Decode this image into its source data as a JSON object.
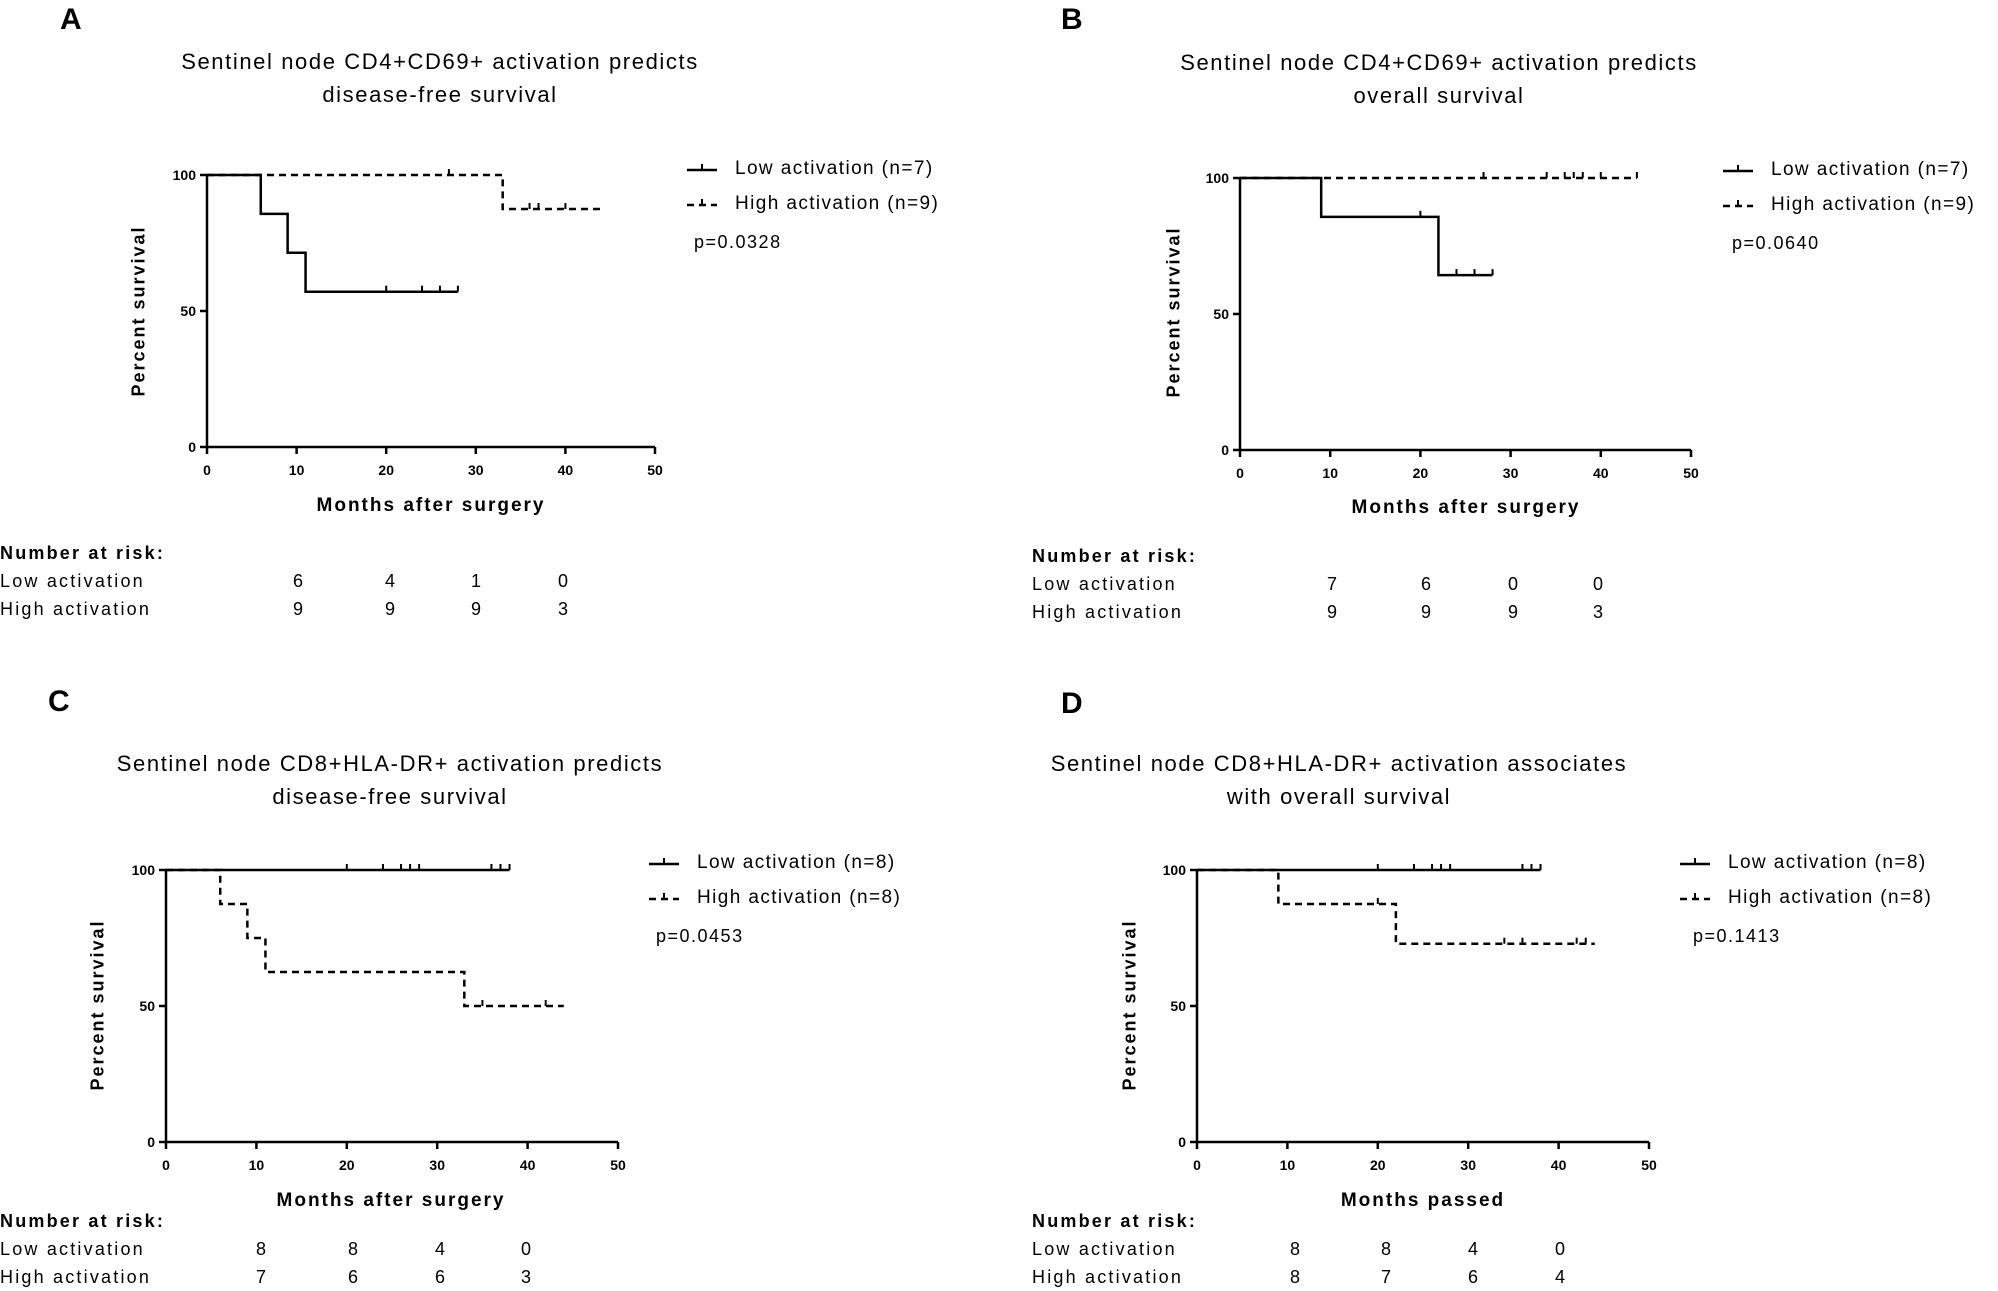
{
  "chart_data": [
    {
      "panel": "A",
      "type": "line",
      "title": [
        "Sentinel node CD4+CD69+ activation predicts",
        "disease-free survival"
      ],
      "xlabel": "Months after surgery",
      "ylabel": "Percent survival",
      "xlim": [
        0,
        50
      ],
      "ylim": [
        0,
        100
      ],
      "xticks": [
        0,
        10,
        20,
        30,
        40,
        50
      ],
      "yticks": [
        0,
        50,
        100
      ],
      "legend": "top-right",
      "p_value": "p=0.0328",
      "series": [
        {
          "name": "Low activation (n=7)",
          "style": "solid",
          "x": [
            0,
            6,
            6,
            9,
            9,
            11,
            11,
            28
          ],
          "y": [
            100,
            100,
            85.7,
            85.7,
            71.4,
            71.4,
            57.1,
            57.1
          ],
          "censored": [
            [
              20,
              57.1
            ],
            [
              24,
              57.1
            ],
            [
              26,
              57.1
            ],
            [
              28,
              57.1
            ]
          ]
        },
        {
          "name": "High activation (n=9)",
          "style": "dashed",
          "x": [
            0,
            33,
            33,
            44
          ],
          "y": [
            100,
            100,
            87.5,
            87.5
          ],
          "censored": [
            [
              27,
              100
            ],
            [
              36,
              87.5
            ],
            [
              37,
              87.5
            ],
            [
              40,
              87.5
            ]
          ]
        }
      ],
      "risk_table": {
        "header": "Number at risk:",
        "times": [
          10,
          20,
          30,
          40
        ],
        "rows": [
          {
            "label": "Low activation",
            "values": [
              "6",
              "4",
              "1",
              "0"
            ]
          },
          {
            "label": "High activation",
            "values": [
              "9",
              "9",
              "9",
              "3"
            ]
          }
        ]
      }
    },
    {
      "panel": "B",
      "type": "line",
      "title": [
        "Sentinel node CD4+CD69+ activation predicts",
        "overall survival"
      ],
      "xlabel": "Months after surgery",
      "ylabel": "Percent survival",
      "xlim": [
        0,
        50
      ],
      "ylim": [
        0,
        100
      ],
      "xticks": [
        0,
        10,
        20,
        30,
        40,
        50
      ],
      "yticks": [
        0,
        50,
        100
      ],
      "legend": "top-right",
      "p_value": "p=0.0640",
      "series": [
        {
          "name": "Low activation (n=7)",
          "style": "solid",
          "x": [
            0,
            9,
            9,
            22,
            22,
            28
          ],
          "y": [
            100,
            100,
            85.7,
            85.7,
            64.3,
            64.3
          ],
          "censored": [
            [
              20,
              85.7
            ],
            [
              24,
              64.3
            ],
            [
              26,
              64.3
            ],
            [
              28,
              64.3
            ]
          ]
        },
        {
          "name": "High activation (n=9)",
          "style": "dashed",
          "x": [
            0,
            44
          ],
          "y": [
            100,
            100
          ],
          "censored": [
            [
              27,
              100
            ],
            [
              34,
              100
            ],
            [
              36,
              100
            ],
            [
              37,
              100
            ],
            [
              38,
              100
            ],
            [
              40,
              100
            ],
            [
              44,
              100
            ]
          ]
        }
      ],
      "risk_table": {
        "header": "Number at risk:",
        "times": [
          10,
          20,
          30,
          40
        ],
        "rows": [
          {
            "label": "Low activation",
            "values": [
              "7",
              "6",
              "0",
              "0"
            ]
          },
          {
            "label": "High activation",
            "values": [
              "9",
              "9",
              "9",
              "3"
            ]
          }
        ]
      }
    },
    {
      "panel": "C",
      "type": "line",
      "title": [
        "Sentinel node CD8+HLA-DR+ activation predicts",
        "disease-free survival"
      ],
      "xlabel": "Months after surgery",
      "ylabel": "Percent survival",
      "xlim": [
        0,
        50
      ],
      "ylim": [
        0,
        100
      ],
      "xticks": [
        0,
        10,
        20,
        30,
        40,
        50
      ],
      "yticks": [
        0,
        50,
        100
      ],
      "legend": "top-right",
      "p_value": "p=0.0453",
      "series": [
        {
          "name": "Low activation (n=8)",
          "style": "solid",
          "x": [
            0,
            38
          ],
          "y": [
            100,
            100
          ],
          "censored": [
            [
              20,
              100
            ],
            [
              24,
              100
            ],
            [
              26,
              100
            ],
            [
              27,
              100
            ],
            [
              28,
              100
            ],
            [
              36,
              100
            ],
            [
              37,
              100
            ],
            [
              38,
              100
            ]
          ]
        },
        {
          "name": "High activation (n=8)",
          "style": "dashed",
          "x": [
            0,
            6,
            6,
            9,
            9,
            11,
            11,
            33,
            33,
            44
          ],
          "y": [
            100,
            100,
            87.5,
            87.5,
            75,
            75,
            62.5,
            62.5,
            50,
            50
          ],
          "censored": [
            [
              35,
              50
            ],
            [
              42,
              50
            ]
          ]
        }
      ],
      "risk_table": {
        "header": "Number at risk:",
        "times": [
          10,
          20,
          30,
          40
        ],
        "rows": [
          {
            "label": "Low activation",
            "values": [
              "8",
              "8",
              "4",
              "0"
            ]
          },
          {
            "label": "High activation",
            "values": [
              "7",
              "6",
              "6",
              "3"
            ]
          }
        ]
      }
    },
    {
      "panel": "D",
      "type": "line",
      "title": [
        "Sentinel node CD8+HLA-DR+ activation associates",
        "with overall survival"
      ],
      "xlabel": "Months passed",
      "ylabel": "Percent survival",
      "xlim": [
        0,
        50
      ],
      "ylim": [
        0,
        100
      ],
      "xticks": [
        0,
        10,
        20,
        30,
        40,
        50
      ],
      "yticks": [
        0,
        50,
        100
      ],
      "legend": "top-right",
      "p_value": "p=0.1413",
      "series": [
        {
          "name": "Low activation (n=8)",
          "style": "solid",
          "x": [
            0,
            38
          ],
          "y": [
            100,
            100
          ],
          "censored": [
            [
              20,
              100
            ],
            [
              24,
              100
            ],
            [
              26,
              100
            ],
            [
              27,
              100
            ],
            [
              28,
              100
            ],
            [
              36,
              100
            ],
            [
              37,
              100
            ],
            [
              38,
              100
            ]
          ]
        },
        {
          "name": "High activation (n=8)",
          "style": "dashed",
          "x": [
            0,
            9,
            9,
            22,
            22,
            44
          ],
          "y": [
            100,
            100,
            87.5,
            87.5,
            72.9,
            72.9
          ],
          "censored": [
            [
              20,
              87.5
            ],
            [
              34,
              72.9
            ],
            [
              36,
              72.9
            ],
            [
              42,
              72.9
            ],
            [
              43,
              72.9
            ]
          ]
        }
      ],
      "risk_table": {
        "header": "Number at risk:",
        "times": [
          10,
          20,
          30,
          40
        ],
        "rows": [
          {
            "label": "Low activation",
            "values": [
              "8",
              "8",
              "4",
              "0"
            ]
          },
          {
            "label": "High activation",
            "values": [
              "8",
              "7",
              "6",
              "4"
            ]
          }
        ]
      }
    }
  ]
}
